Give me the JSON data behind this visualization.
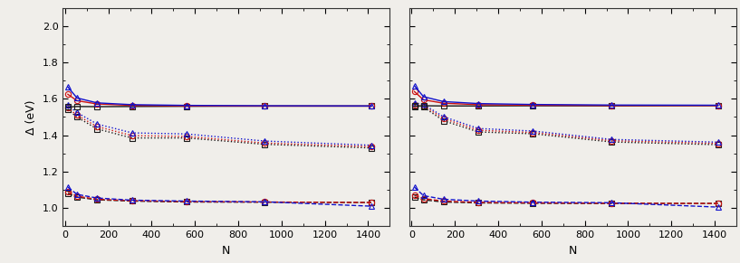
{
  "N_points": [
    13,
    55,
    147,
    309,
    561,
    923,
    1415
  ],
  "panel_a": {
    "solid_black": [
      1.555,
      1.558,
      1.557,
      1.558,
      1.559,
      1.56,
      1.56
    ],
    "solid_red": [
      1.625,
      1.59,
      1.572,
      1.564,
      1.561,
      1.56,
      1.56
    ],
    "solid_blue": [
      1.665,
      1.605,
      1.578,
      1.568,
      1.564,
      1.562,
      1.561
    ],
    "dotted_black": [
      1.54,
      1.5,
      1.435,
      1.385,
      1.385,
      1.35,
      1.33
    ],
    "dotted_red": [
      1.55,
      1.51,
      1.448,
      1.398,
      1.393,
      1.357,
      1.337
    ],
    "dotted_blue": [
      1.565,
      1.525,
      1.462,
      1.413,
      1.407,
      1.368,
      1.345
    ],
    "dashed_black": [
      1.08,
      1.06,
      1.045,
      1.038,
      1.033,
      1.032,
      1.03
    ],
    "dashed_red": [
      1.09,
      1.065,
      1.048,
      1.04,
      1.035,
      1.033,
      1.03
    ],
    "dashed_blue": [
      1.115,
      1.075,
      1.055,
      1.043,
      1.038,
      1.034,
      1.01
    ]
  },
  "panel_b": {
    "solid_black": [
      1.56,
      1.562,
      1.561,
      1.561,
      1.562,
      1.562,
      1.563
    ],
    "solid_red": [
      1.64,
      1.595,
      1.576,
      1.568,
      1.565,
      1.563,
      1.563
    ],
    "solid_blue": [
      1.672,
      1.612,
      1.585,
      1.574,
      1.569,
      1.566,
      1.565
    ],
    "dotted_black": [
      1.558,
      1.555,
      1.48,
      1.418,
      1.408,
      1.363,
      1.348
    ],
    "dotted_red": [
      1.565,
      1.562,
      1.492,
      1.427,
      1.415,
      1.37,
      1.355
    ],
    "dotted_blue": [
      1.578,
      1.57,
      1.502,
      1.437,
      1.423,
      1.377,
      1.362
    ],
    "dashed_black": [
      1.06,
      1.045,
      1.033,
      1.028,
      1.026,
      1.025,
      1.025
    ],
    "dashed_red": [
      1.07,
      1.052,
      1.038,
      1.031,
      1.028,
      1.026,
      1.025
    ],
    "dashed_blue": [
      1.115,
      1.068,
      1.048,
      1.038,
      1.032,
      1.029,
      1.005
    ]
  },
  "ylim": [
    0.9,
    2.1
  ],
  "yticks": [
    1.0,
    1.2,
    1.4,
    1.6,
    1.8,
    2.0
  ],
  "xlim": [
    -10,
    1500
  ],
  "xticks": [
    0,
    200,
    400,
    600,
    800,
    1000,
    1200,
    1400
  ],
  "xlabel": "N",
  "ylabel": "Δ (eV)",
  "color_black": "#1a1a1a",
  "color_red": "#cc1111",
  "color_blue": "#1111cc",
  "markersize": 4.5,
  "linewidth": 1.0,
  "bg_color": "#f0eeea"
}
